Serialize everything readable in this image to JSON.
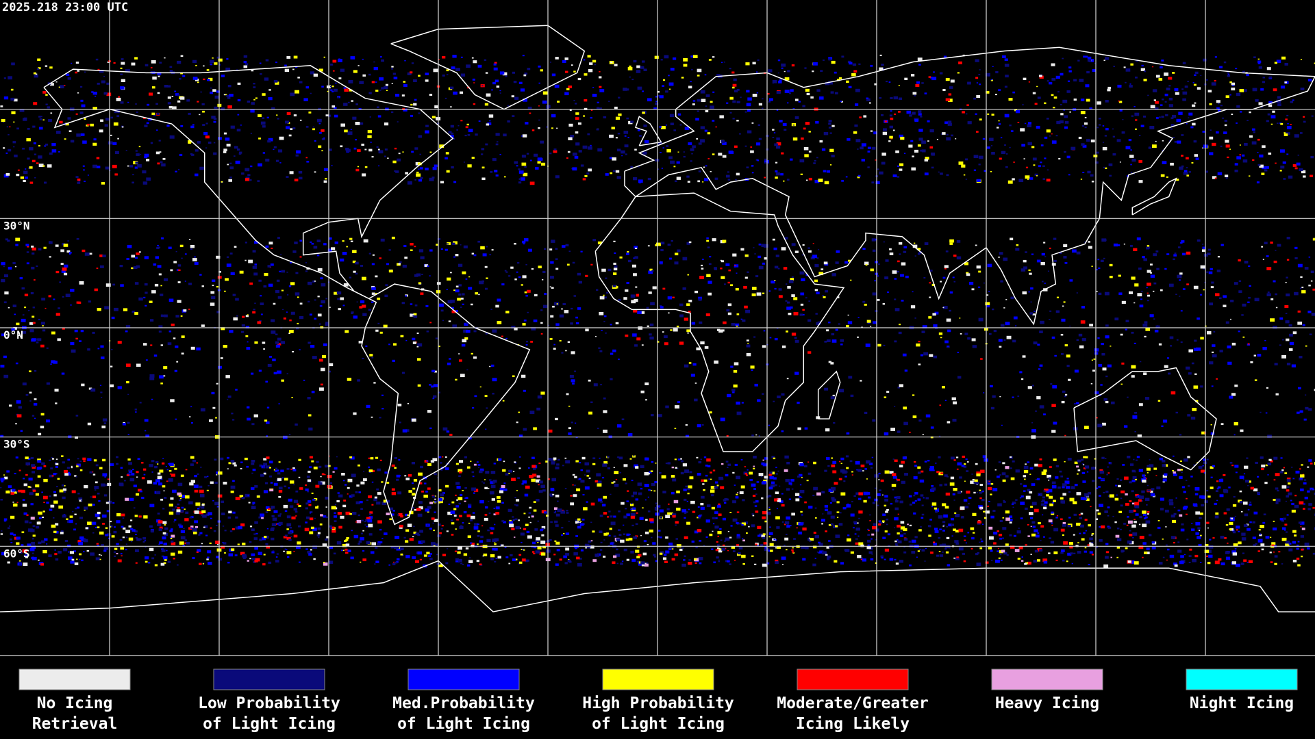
{
  "header": {
    "timestamp": "2025.218 23:00 UTC"
  },
  "map": {
    "latitude_labels": [
      "30°N",
      "0°N",
      "30°S",
      "60°S"
    ]
  },
  "legend": {
    "items": [
      {
        "label_lines": [
          "No Icing",
          "Retrieval"
        ],
        "color": "#ececec"
      },
      {
        "label_lines": [
          "Low Probability",
          "of Light Icing"
        ],
        "color": "#0a0a7a"
      },
      {
        "label_lines": [
          "Med.Probability",
          "of Light Icing"
        ],
        "color": "#0000ff"
      },
      {
        "label_lines": [
          "High Probability",
          "of Light Icing"
        ],
        "color": "#ffff00"
      },
      {
        "label_lines": [
          "Moderate/Greater",
          "Icing Likely"
        ],
        "color": "#ff0000"
      },
      {
        "label_lines": [
          "Heavy Icing"
        ],
        "color": "#e8a0e0"
      },
      {
        "label_lines": [
          "Night Icing"
        ],
        "color": "#00ffff"
      }
    ]
  }
}
